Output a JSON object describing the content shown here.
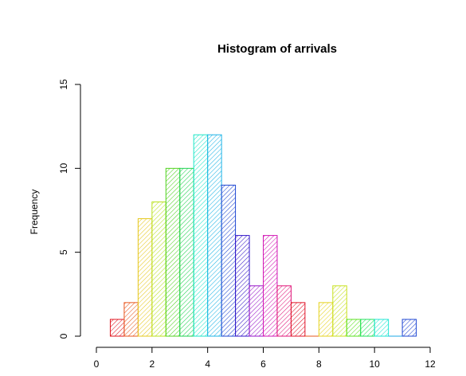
{
  "chart_data": {
    "type": "bar",
    "title": "Histogram of arrivals",
    "xlabel": "",
    "ylabel": "Frequency",
    "xlim": [
      0,
      12
    ],
    "ylim": [
      0,
      15
    ],
    "x_ticks": [
      0,
      2,
      4,
      6,
      8,
      10,
      12
    ],
    "y_ticks": [
      0,
      5,
      10,
      15
    ],
    "bin_width": 0.5,
    "bins": [
      {
        "start": 0.5,
        "end": 1.0,
        "count": 1,
        "color": "#e0141e"
      },
      {
        "start": 1.0,
        "end": 1.5,
        "count": 2,
        "color": "#e8561e"
      },
      {
        "start": 1.5,
        "end": 2.0,
        "count": 7,
        "color": "#e6c81e"
      },
      {
        "start": 2.0,
        "end": 2.5,
        "count": 8,
        "color": "#b9e11e"
      },
      {
        "start": 2.5,
        "end": 3.0,
        "count": 10,
        "color": "#50d21e"
      },
      {
        "start": 3.0,
        "end": 3.5,
        "count": 10,
        "color": "#1ed250"
      },
      {
        "start": 3.5,
        "end": 4.0,
        "count": 12,
        "color": "#1ee6c8"
      },
      {
        "start": 4.0,
        "end": 4.5,
        "count": 12,
        "color": "#1eb4e6"
      },
      {
        "start": 4.5,
        "end": 5.0,
        "count": 9,
        "color": "#1e46d2"
      },
      {
        "start": 5.0,
        "end": 5.5,
        "count": 6,
        "color": "#3214c8"
      },
      {
        "start": 5.5,
        "end": 6.0,
        "count": 3,
        "color": "#9614c8"
      },
      {
        "start": 6.0,
        "end": 6.5,
        "count": 6,
        "color": "#d214b4"
      },
      {
        "start": 6.5,
        "end": 7.0,
        "count": 3,
        "color": "#e01478"
      },
      {
        "start": 7.0,
        "end": 7.5,
        "count": 2,
        "color": "#e01428"
      },
      {
        "start": 7.5,
        "end": 8.0,
        "count": 0,
        "color": "#e65a1e"
      },
      {
        "start": 8.0,
        "end": 8.5,
        "count": 2,
        "color": "#e6d21e"
      },
      {
        "start": 8.5,
        "end": 9.0,
        "count": 3,
        "color": "#c8e11e"
      },
      {
        "start": 9.0,
        "end": 9.5,
        "count": 1,
        "color": "#5ae11e"
      },
      {
        "start": 9.5,
        "end": 10.0,
        "count": 1,
        "color": "#1ee15a"
      },
      {
        "start": 10.0,
        "end": 10.5,
        "count": 1,
        "color": "#1ee6d2"
      },
      {
        "start": 10.5,
        "end": 11.0,
        "count": 0,
        "color": "#1eaae6"
      },
      {
        "start": 11.0,
        "end": 11.5,
        "count": 1,
        "color": "#1e46d2"
      }
    ],
    "fill": "diagonal hatching",
    "grid": false,
    "legend": "none"
  }
}
